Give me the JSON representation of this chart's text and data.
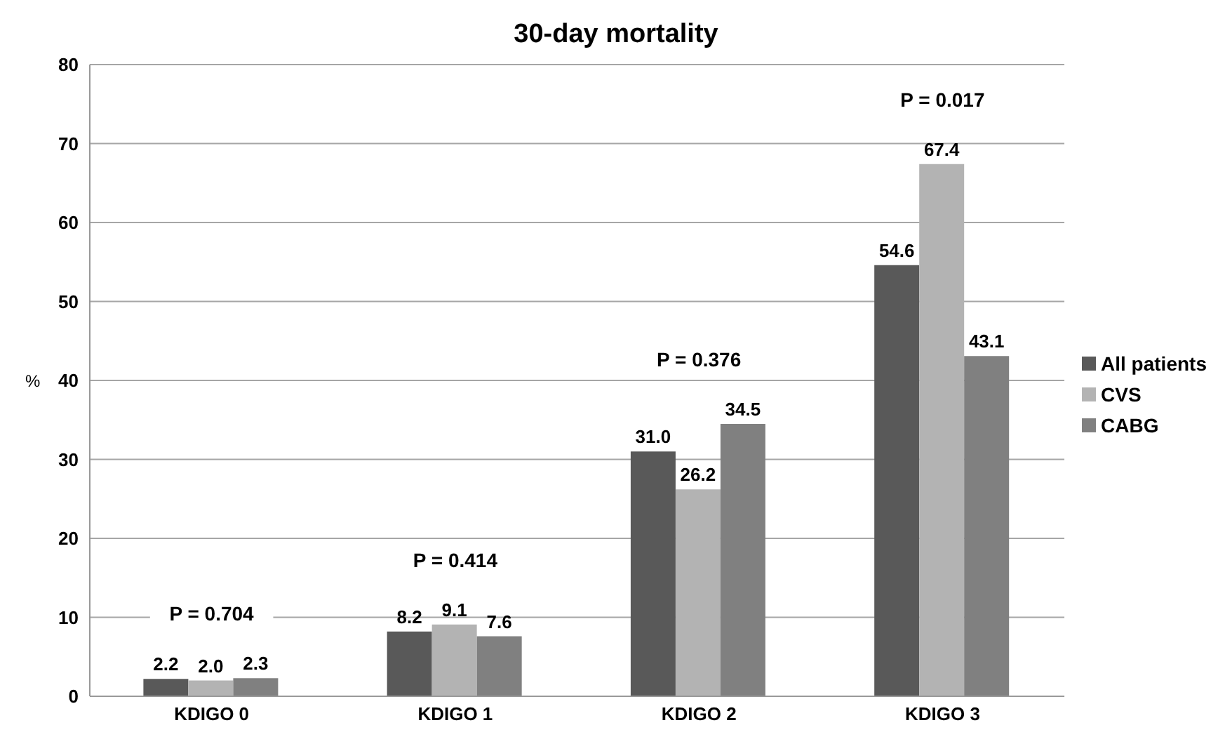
{
  "chart_data": {
    "type": "bar",
    "title": "30-day mortality",
    "ylabel": "%",
    "categories": [
      "KDIGO 0",
      "KDIGO 1",
      "KDIGO 2",
      "KDIGO 3"
    ],
    "series": [
      {
        "name": "All patients",
        "color": "#595959",
        "values": [
          2.2,
          8.2,
          31.0,
          54.6
        ],
        "value_labels": [
          "2.2",
          "8.2",
          "31.0",
          "54.6"
        ]
      },
      {
        "name": "CVS",
        "color": "#b3b3b3",
        "values": [
          2.0,
          9.1,
          26.2,
          67.4
        ],
        "value_labels": [
          "2.0",
          "9.1",
          "26.2",
          "67.4"
        ]
      },
      {
        "name": "CABG",
        "color": "#808080",
        "values": [
          2.3,
          7.6,
          34.5,
          43.1
        ],
        "value_labels": [
          "2.3",
          "7.6",
          "34.5",
          "43.1"
        ]
      }
    ],
    "ylim": [
      0,
      80
    ],
    "yticks": [
      0,
      10,
      20,
      30,
      40,
      50,
      60,
      70,
      80
    ],
    "grid": "y",
    "legend": "right",
    "annotations": [
      "P = 0.704",
      "P = 0.414",
      "P = 0.376",
      "P = 0.017"
    ]
  }
}
